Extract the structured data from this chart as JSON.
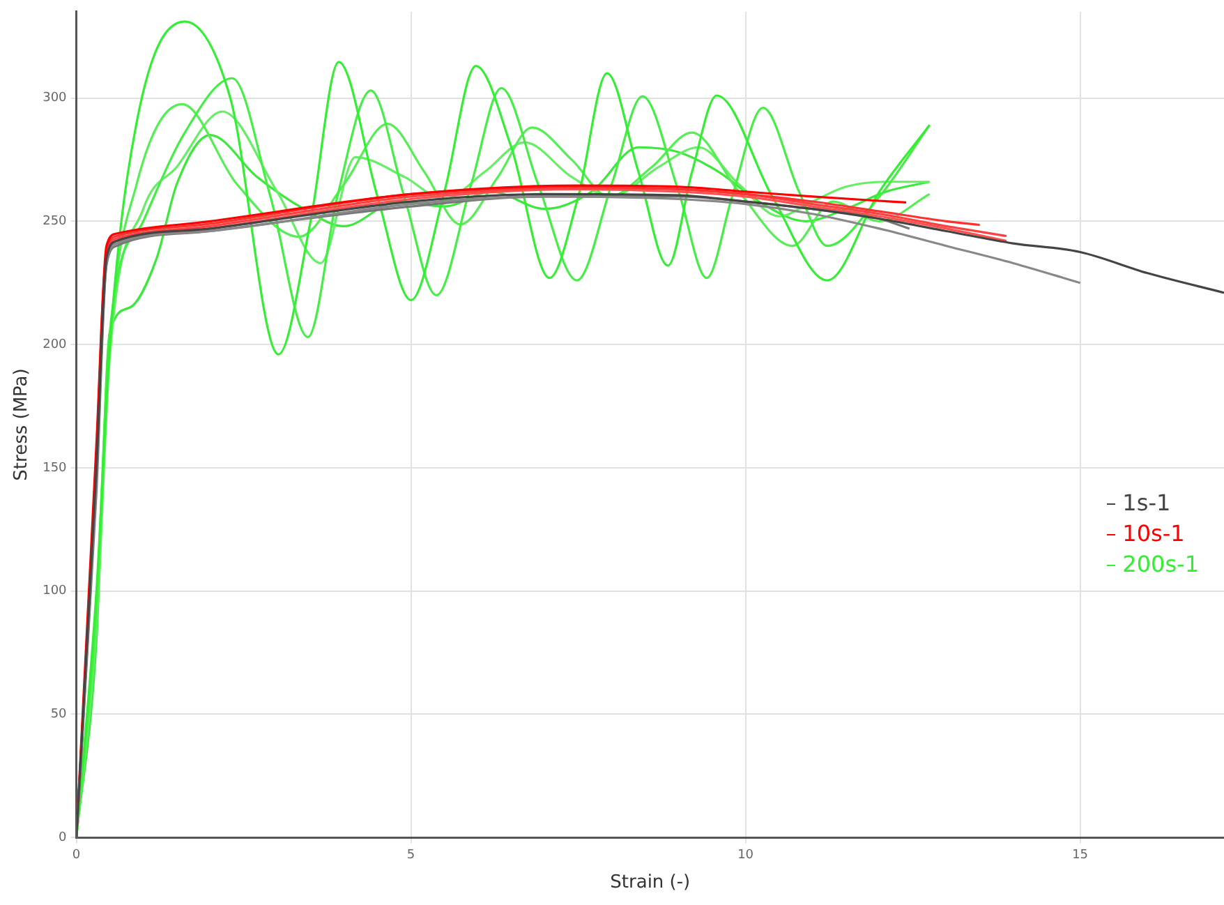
{
  "chart_data": {
    "type": "line",
    "xlabel": "Strain (-)",
    "ylabel": "Stress (MPa)",
    "xlim": [
      0,
      17.15
    ],
    "ylim": [
      0,
      335
    ],
    "xticks": [
      0,
      5,
      10,
      15
    ],
    "yticks": [
      0,
      50,
      100,
      150,
      200,
      250,
      300
    ],
    "grid": true,
    "legend": "right",
    "marker": "none",
    "line_style": "solid",
    "series": [
      {
        "name": "1s-1",
        "color": "#444444",
        "x": [
          0,
          0.3,
          0.45,
          0.6,
          2,
          5,
          7,
          9,
          10,
          11,
          12,
          13,
          14,
          15,
          16,
          17.15
        ],
        "values": [
          0,
          150,
          235,
          242,
          247,
          258,
          261,
          260.5,
          258,
          255,
          251,
          246,
          241,
          237.5,
          229,
          221
        ]
      },
      {
        "color": "#888888",
        "x": [
          0,
          0.3,
          0.45,
          0.6,
          2,
          5,
          7,
          9,
          10,
          11,
          12,
          13,
          14,
          15
        ],
        "values": [
          0,
          145,
          233,
          241,
          246,
          257,
          260,
          259,
          257,
          253,
          247,
          240,
          233,
          225
        ]
      },
      {
        "color": "#777777",
        "x": [
          0,
          0.3,
          0.45,
          0.6,
          2,
          5,
          7,
          9,
          10,
          11,
          12,
          12.45
        ],
        "values": [
          0,
          140,
          232,
          240,
          246,
          256,
          260,
          260,
          258,
          255,
          251,
          247
        ]
      },
      {
        "name": "10s-1",
        "color": "#ff0000",
        "x": [
          0,
          0.3,
          0.45,
          0.6,
          2,
          5,
          7.5,
          9,
          10,
          11,
          12.4
        ],
        "values": [
          0,
          160,
          240,
          245,
          250,
          261,
          264.5,
          264,
          262,
          260,
          257.6
        ]
      },
      {
        "color": "#ff3030",
        "x": [
          0,
          0.3,
          0.45,
          0.6,
          2,
          5,
          7.5,
          9,
          10,
          11,
          12,
          13,
          13.5
        ],
        "values": [
          0,
          150,
          238,
          244,
          249,
          261,
          264,
          263,
          261,
          258,
          254,
          250,
          248.5
        ]
      },
      {
        "color": "#ff4040",
        "x": [
          0,
          0.25,
          0.45,
          0.6,
          2,
          5,
          7.5,
          9,
          10,
          11,
          12,
          13,
          13.9
        ],
        "values": [
          0,
          120,
          237,
          243,
          248,
          260,
          263.5,
          263,
          261,
          257,
          253,
          248,
          244
        ]
      },
      {
        "color": "#ff5050",
        "x": [
          0,
          0.3,
          0.45,
          0.6,
          2,
          5,
          7.5,
          9,
          10,
          11,
          12,
          13,
          13.9
        ],
        "values": [
          0,
          145,
          236,
          242,
          247,
          259,
          263,
          262,
          260,
          256,
          252,
          247,
          242
        ]
      },
      {
        "name": "200s-1",
        "color": "#33ee33",
        "x": [
          0,
          0.3,
          0.5,
          0.9,
          1.62,
          2.3,
          3.02,
          3.5,
          3.92,
          4.5,
          5.0,
          5.5,
          5.97,
          6.5,
          7.07,
          7.5,
          7.93,
          8.4,
          8.84,
          9.2,
          9.57,
          10.4,
          11.22,
          12,
          12.75
        ],
        "values": [
          0,
          100,
          200,
          290,
          331,
          300,
          196,
          250,
          314.6,
          260,
          218,
          262,
          313,
          280,
          227,
          260,
          310,
          270,
          232,
          270,
          301,
          260,
          226,
          262,
          289
        ]
      },
      {
        "color": "#44ee44",
        "x": [
          0,
          0.3,
          0.5,
          1.0,
          1.6,
          2.33,
          2.9,
          3.46,
          3.9,
          4.4,
          4.9,
          5.38,
          5.9,
          6.35,
          6.9,
          7.48,
          8.0,
          8.46,
          9.0,
          9.42,
          9.8,
          10.26,
          10.8,
          11.22,
          12,
          12.75
        ],
        "values": [
          0,
          95,
          205,
          250,
          285,
          308,
          260,
          203,
          260,
          303,
          260,
          220,
          265,
          304,
          265,
          226,
          265,
          300.7,
          262,
          227,
          260,
          296,
          262,
          240,
          260,
          289
        ]
      },
      {
        "color": "#55ee55",
        "x": [
          0,
          0.3,
          0.5,
          0.9,
          1.58,
          2.4,
          3.33,
          4.0,
          4.65,
          5.2,
          5.74,
          6.3,
          6.81,
          7.4,
          7.96,
          8.6,
          9.2,
          9.9,
          10.7,
          11.3,
          12,
          12.75
        ],
        "values": [
          0,
          90,
          200,
          265,
          297.5,
          265,
          243.7,
          265,
          289.5,
          270,
          248.7,
          268,
          288,
          275,
          260,
          272,
          286,
          262,
          240,
          258,
          250,
          261
        ]
      },
      {
        "color": "#66ee66",
        "x": [
          0,
          0.3,
          0.5,
          1.0,
          1.5,
          2.18,
          3.0,
          3.65,
          4.17,
          4.9,
          5.5,
          6.1,
          6.7,
          7.4,
          8.0,
          8.7,
          9.3,
          9.9,
          10.5,
          11,
          11.5,
          12.1,
          12.75
        ],
        "values": [
          0,
          85,
          195,
          255,
          272,
          294.5,
          262,
          233,
          276,
          268,
          259,
          270,
          282,
          268,
          260,
          272,
          280,
          265,
          252,
          258,
          264,
          266,
          266
        ]
      },
      {
        "color": "#3ce83c",
        "x": [
          0,
          0.3,
          0.5,
          0.8,
          1.2,
          1.5,
          2.0,
          2.7,
          3.4,
          4.0,
          4.8,
          5.5,
          6.2,
          7.0,
          7.7,
          8.4,
          9.0,
          9.6,
          10.2,
          10.9,
          11.5,
          12.1,
          12.75
        ],
        "values": [
          0,
          80,
          205,
          215,
          235,
          265,
          285,
          268,
          255,
          248,
          258,
          256,
          262,
          255,
          262,
          280,
          278,
          270,
          258,
          250,
          255,
          262,
          266
        ]
      }
    ]
  }
}
